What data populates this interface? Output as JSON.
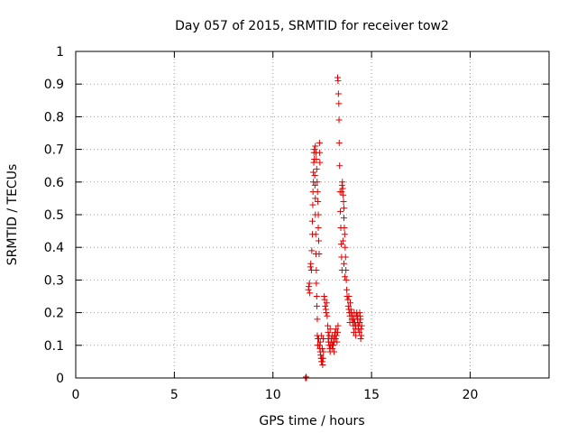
{
  "chart_data": {
    "type": "scatter",
    "title": "Day 057 of 2015, SRMTID for receiver tow2",
    "xlabel": "GPS time / hours",
    "ylabel": "SRMTID / TECUs",
    "xlim": [
      0,
      24
    ],
    "ylim": [
      0,
      1
    ],
    "xticks": [
      0,
      5,
      10,
      15,
      20
    ],
    "yticks": [
      0,
      0.1,
      0.2,
      0.3,
      0.4,
      0.5,
      0.6,
      0.7,
      0.8,
      0.9,
      1
    ],
    "ytick_labels": [
      "0",
      "0.1",
      "0.2",
      "0.3",
      "0.4",
      "0.5",
      "0.6",
      "0.7",
      "0.8",
      "0.9",
      "1"
    ],
    "grid": true,
    "marker": "+",
    "color": "#e00000",
    "series": [
      {
        "name": "tow2",
        "points": [
          [
            11.65,
            0.0
          ],
          [
            11.68,
            0.003
          ],
          [
            11.7,
            0.0
          ],
          [
            11.8,
            0.27
          ],
          [
            11.82,
            0.28
          ],
          [
            11.85,
            0.29
          ],
          [
            11.87,
            0.26
          ],
          [
            11.9,
            0.34
          ],
          [
            11.92,
            0.35
          ],
          [
            11.95,
            0.33
          ],
          [
            11.97,
            0.39
          ],
          [
            12.0,
            0.44
          ],
          [
            12.0,
            0.48
          ],
          [
            12.02,
            0.53
          ],
          [
            12.03,
            0.57
          ],
          [
            12.05,
            0.6
          ],
          [
            12.05,
            0.63
          ],
          [
            12.07,
            0.66
          ],
          [
            12.08,
            0.69
          ],
          [
            12.1,
            0.7
          ],
          [
            12.1,
            0.67
          ],
          [
            12.12,
            0.62
          ],
          [
            12.13,
            0.59
          ],
          [
            12.15,
            0.55
          ],
          [
            12.15,
            0.5
          ],
          [
            12.17,
            0.44
          ],
          [
            12.18,
            0.38
          ],
          [
            12.2,
            0.33
          ],
          [
            12.2,
            0.29
          ],
          [
            12.22,
            0.25
          ],
          [
            12.23,
            0.22
          ],
          [
            12.25,
            0.18
          ],
          [
            12.25,
            0.13
          ],
          [
            12.27,
            0.1
          ],
          [
            12.28,
            0.12
          ],
          [
            12.15,
            0.71
          ],
          [
            12.18,
            0.69
          ],
          [
            12.2,
            0.67
          ],
          [
            12.22,
            0.64
          ],
          [
            12.24,
            0.6
          ],
          [
            12.26,
            0.57
          ],
          [
            12.28,
            0.54
          ],
          [
            12.3,
            0.5
          ],
          [
            12.3,
            0.46
          ],
          [
            12.32,
            0.42
          ],
          [
            12.34,
            0.38
          ],
          [
            12.36,
            0.72
          ],
          [
            12.37,
            0.69
          ],
          [
            12.38,
            0.66
          ],
          [
            12.32,
            0.12
          ],
          [
            12.35,
            0.1
          ],
          [
            12.38,
            0.09
          ],
          [
            12.4,
            0.08
          ],
          [
            12.42,
            0.07
          ],
          [
            12.44,
            0.06
          ],
          [
            12.46,
            0.05
          ],
          [
            12.48,
            0.06
          ],
          [
            12.5,
            0.05
          ],
          [
            12.52,
            0.04
          ],
          [
            12.54,
            0.06
          ],
          [
            12.56,
            0.08
          ],
          [
            12.4,
            0.11
          ],
          [
            12.45,
            0.13
          ],
          [
            12.5,
            0.09
          ],
          [
            12.55,
            0.12
          ],
          [
            12.6,
            0.25
          ],
          [
            12.62,
            0.24
          ],
          [
            12.65,
            0.22
          ],
          [
            12.68,
            0.21
          ],
          [
            12.7,
            0.2
          ],
          [
            12.72,
            0.23
          ],
          [
            12.75,
            0.19
          ],
          [
            12.78,
            0.16
          ],
          [
            12.8,
            0.14
          ],
          [
            12.8,
            0.12
          ],
          [
            12.82,
            0.11
          ],
          [
            12.85,
            0.1
          ],
          [
            12.88,
            0.09
          ],
          [
            12.9,
            0.08
          ],
          [
            12.92,
            0.1
          ],
          [
            12.95,
            0.12
          ],
          [
            12.98,
            0.11
          ],
          [
            13.0,
            0.13
          ],
          [
            13.02,
            0.09
          ],
          [
            13.05,
            0.1
          ],
          [
            13.08,
            0.12
          ],
          [
            13.1,
            0.11
          ],
          [
            13.12,
            0.13
          ],
          [
            13.15,
            0.14
          ],
          [
            13.18,
            0.12
          ],
          [
            13.2,
            0.15
          ],
          [
            13.22,
            0.13
          ],
          [
            13.25,
            0.11
          ],
          [
            13.28,
            0.14
          ],
          [
            13.3,
            0.16
          ],
          [
            12.85,
            0.13
          ],
          [
            12.9,
            0.15
          ],
          [
            13.0,
            0.1
          ],
          [
            13.1,
            0.08
          ],
          [
            13.28,
            0.92
          ],
          [
            13.3,
            0.91
          ],
          [
            13.32,
            0.87
          ],
          [
            13.34,
            0.84
          ],
          [
            13.35,
            0.79
          ],
          [
            13.36,
            0.72
          ],
          [
            13.38,
            0.65
          ],
          [
            13.4,
            0.57
          ],
          [
            13.42,
            0.51
          ],
          [
            13.44,
            0.46
          ],
          [
            13.46,
            0.41
          ],
          [
            13.48,
            0.37
          ],
          [
            13.5,
            0.33
          ],
          [
            13.48,
            0.57
          ],
          [
            13.5,
            0.59
          ],
          [
            13.52,
            0.6
          ],
          [
            13.54,
            0.58
          ],
          [
            13.56,
            0.56
          ],
          [
            13.58,
            0.54
          ],
          [
            13.6,
            0.52
          ],
          [
            13.6,
            0.49
          ],
          [
            13.62,
            0.46
          ],
          [
            13.64,
            0.44
          ],
          [
            13.66,
            0.4
          ],
          [
            13.68,
            0.37
          ],
          [
            13.7,
            0.33
          ],
          [
            13.72,
            0.3
          ],
          [
            13.74,
            0.27
          ],
          [
            13.76,
            0.25
          ],
          [
            13.55,
            0.42
          ],
          [
            13.6,
            0.35
          ],
          [
            13.65,
            0.31
          ],
          [
            13.8,
            0.24
          ],
          [
            13.82,
            0.22
          ],
          [
            13.85,
            0.21
          ],
          [
            13.88,
            0.2
          ],
          [
            13.9,
            0.19
          ],
          [
            13.92,
            0.23
          ],
          [
            13.95,
            0.21
          ],
          [
            13.98,
            0.2
          ],
          [
            14.0,
            0.18
          ],
          [
            14.02,
            0.19
          ],
          [
            14.05,
            0.17
          ],
          [
            14.08,
            0.16
          ],
          [
            14.1,
            0.18
          ],
          [
            14.12,
            0.2
          ],
          [
            14.15,
            0.17
          ],
          [
            14.18,
            0.15
          ],
          [
            14.2,
            0.16
          ],
          [
            14.22,
            0.19
          ],
          [
            14.25,
            0.2
          ],
          [
            14.28,
            0.18
          ],
          [
            14.3,
            0.17
          ],
          [
            14.32,
            0.15
          ],
          [
            14.35,
            0.16
          ],
          [
            14.38,
            0.14
          ],
          [
            14.4,
            0.17
          ],
          [
            14.42,
            0.19
          ],
          [
            14.44,
            0.18
          ],
          [
            14.46,
            0.15
          ],
          [
            14.48,
            0.13
          ],
          [
            14.5,
            0.16
          ],
          [
            14.1,
            0.14
          ],
          [
            14.2,
            0.13
          ],
          [
            14.3,
            0.19
          ],
          [
            14.4,
            0.2
          ],
          [
            14.45,
            0.12
          ],
          [
            13.85,
            0.25
          ],
          [
            13.9,
            0.17
          ]
        ]
      }
    ]
  }
}
